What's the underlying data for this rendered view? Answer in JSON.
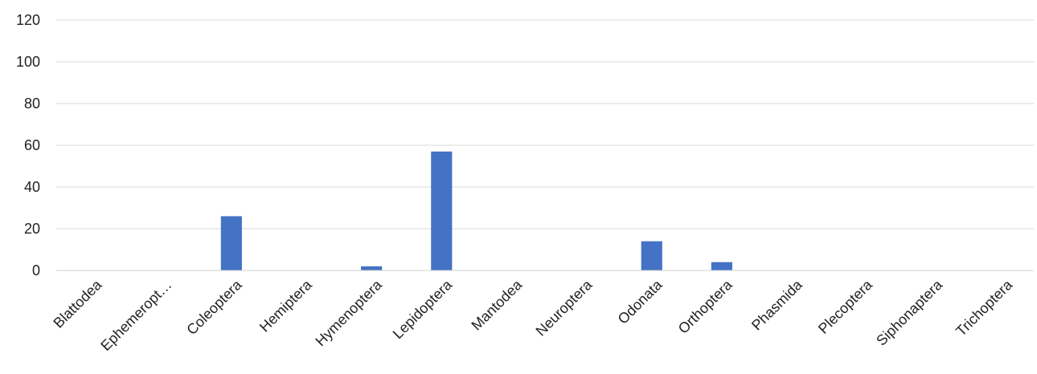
{
  "chart_data": {
    "type": "bar",
    "title": "",
    "xlabel": "",
    "ylabel": "",
    "categories": [
      "Blattodea",
      "Ephemeropt…",
      "Coleoptera",
      "Hemiptera",
      "Hymenoptera",
      "Lepidoptera",
      "Mantodea",
      "Neuroptera",
      "Odonata",
      "Orthoptera",
      "Phasmida",
      "Plecoptera",
      "Siphonaptera",
      "Trichoptera"
    ],
    "values": [
      0,
      0,
      26,
      0,
      2,
      57,
      0,
      0,
      14,
      4,
      0,
      0,
      0,
      0
    ],
    "ylim": [
      0,
      120
    ],
    "yticks": [
      "0",
      "20",
      "40",
      "60",
      "80",
      "100",
      "120"
    ],
    "grid": true,
    "legend": "none",
    "bar_color": "#4472c4"
  }
}
